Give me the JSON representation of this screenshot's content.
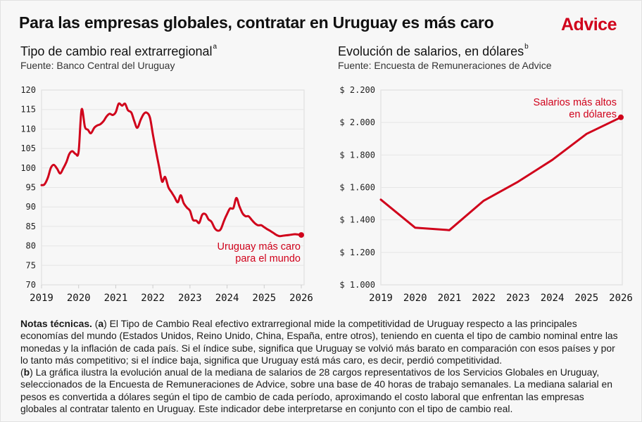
{
  "title": "Para las empresas globales, contratar en Uruguay es más caro",
  "logo": "Advice",
  "colors": {
    "accent": "#d0021b",
    "grid": "#e6e6e6",
    "background": "#f7f7f7"
  },
  "notes": {
    "lead": "Notas técnicas.",
    "a_marker": "a",
    "a_text": "El Tipo de Cambio Real efectivo extrarregional mide la competitividad de Uruguay respecto a las principales economías del mundo (Estados Unidos, Reino Unido, China, España, entre otros), teniendo en cuenta el tipo de cambio nominal entre las monedas y la inflación de cada país. Si el índice sube, significa que Uruguay se volvió más barato en comparación con esos países y por lo tanto más competitivo; si el índice baja, significa que Uruguay está más caro, es decir, perdió competitividad.",
    "b_marker": "b",
    "b_text": "La gráfica ilustra la evolución anual de la mediana de salarios de 28 cargos representativos de los Servicios Globales en Uruguay, seleccionados de la Encuesta de Remuneraciones de Advice, sobre una base de 40 horas de trabajo semanales. La mediana salarial en pesos es convertida a dólares según el tipo de cambio de cada período, aproximando el costo laboral que enfrentan las empresas globales al contratar talento en Uruguay. Este indicador debe interpretarse en conjunto con el tipo de cambio real."
  },
  "chart_data": [
    {
      "type": "line",
      "title": "Tipo de cambio real extrarregional",
      "title_superscript": "a",
      "source": "Fuente: Banco Central del Uruguay",
      "xlabel": "",
      "ylabel": "",
      "xlim": [
        2019,
        2026
      ],
      "ylim": [
        70,
        120
      ],
      "grid": true,
      "x_ticks": [
        "2019",
        "2020",
        "2021",
        "2022",
        "2023",
        "2024",
        "2025",
        "2026"
      ],
      "y_ticks": [
        "70",
        "75",
        "80",
        "85",
        "90",
        "95",
        "100",
        "105",
        "110",
        "115",
        "120"
      ],
      "annotation": [
        "Uruguay más caro",
        "para el mundo"
      ],
      "series": [
        {
          "name": "Tipo de cambio real extrarregional",
          "x": [
            2019.0,
            2019.08,
            2019.17,
            2019.25,
            2019.33,
            2019.42,
            2019.5,
            2019.58,
            2019.67,
            2019.75,
            2019.83,
            2019.92,
            2020.0,
            2020.08,
            2020.17,
            2020.25,
            2020.33,
            2020.42,
            2020.5,
            2020.58,
            2020.67,
            2020.75,
            2020.83,
            2020.92,
            2021.0,
            2021.08,
            2021.17,
            2021.25,
            2021.33,
            2021.42,
            2021.5,
            2021.58,
            2021.67,
            2021.75,
            2021.83,
            2021.92,
            2022.0,
            2022.08,
            2022.17,
            2022.25,
            2022.33,
            2022.42,
            2022.5,
            2022.58,
            2022.67,
            2022.75,
            2022.83,
            2022.92,
            2023.0,
            2023.08,
            2023.17,
            2023.25,
            2023.33,
            2023.42,
            2023.5,
            2023.58,
            2023.67,
            2023.75,
            2023.83,
            2023.92,
            2024.0,
            2024.08,
            2024.17,
            2024.25,
            2024.33,
            2024.42,
            2024.5,
            2024.58,
            2024.67,
            2024.75,
            2024.83,
            2024.92,
            2025.0,
            2025.08,
            2025.17,
            2025.25,
            2025.33,
            2025.42,
            2025.5,
            2025.58,
            2025.67,
            2025.75,
            2025.83,
            2025.92,
            2026.0
          ],
          "values": [
            95.6,
            95.8,
            97.5,
            100.0,
            100.8,
            99.8,
            98.6,
            99.8,
            101.5,
            103.6,
            104.3,
            103.6,
            104.2,
            115.0,
            110.5,
            109.8,
            108.9,
            110.3,
            110.9,
            111.2,
            112.0,
            113.2,
            113.9,
            113.6,
            114.3,
            116.5,
            116.0,
            116.5,
            114.8,
            114.2,
            112.0,
            110.3,
            112.3,
            113.8,
            114.2,
            113.0,
            108.7,
            104.5,
            100.2,
            96.5,
            97.7,
            95.0,
            93.8,
            92.6,
            91.2,
            93.0,
            91.0,
            89.8,
            89.0,
            86.7,
            86.5,
            85.9,
            88.0,
            88.1,
            86.8,
            86.2,
            84.5,
            83.9,
            84.3,
            86.5,
            88.2,
            89.6,
            89.7,
            92.3,
            90.2,
            88.3,
            87.6,
            87.6,
            86.6,
            85.8,
            85.3,
            85.3,
            84.8,
            84.3,
            83.8,
            83.3,
            82.8,
            82.5,
            82.6,
            82.7,
            82.8,
            82.9,
            83.0,
            82.9,
            82.8
          ]
        }
      ]
    },
    {
      "type": "line",
      "title": "Evolución de salarios, en dólares",
      "title_superscript": "b",
      "source": "Fuente: Encuesta de Remuneraciones de Advice",
      "xlabel": "",
      "ylabel": "",
      "xlim": [
        2019,
        2026
      ],
      "ylim": [
        1000,
        2200
      ],
      "grid": true,
      "x_ticks": [
        "2019",
        "2020",
        "2021",
        "2022",
        "2023",
        "2024",
        "2025",
        "2026"
      ],
      "y_ticks": [
        "$ 1.000",
        "$ 1.200",
        "$ 1.400",
        "$ 1.600",
        "$ 1.800",
        "$ 2.000",
        "$ 2.200"
      ],
      "annotation": [
        "Salarios más altos",
        "en dólares"
      ],
      "series": [
        {
          "name": "Mediana salarial en dólares",
          "x": [
            2019,
            2020,
            2021,
            2022,
            2023,
            2024,
            2025,
            2026
          ],
          "values": [
            1525,
            1352,
            1337,
            1518,
            1635,
            1770,
            1930,
            2032
          ]
        }
      ]
    }
  ]
}
